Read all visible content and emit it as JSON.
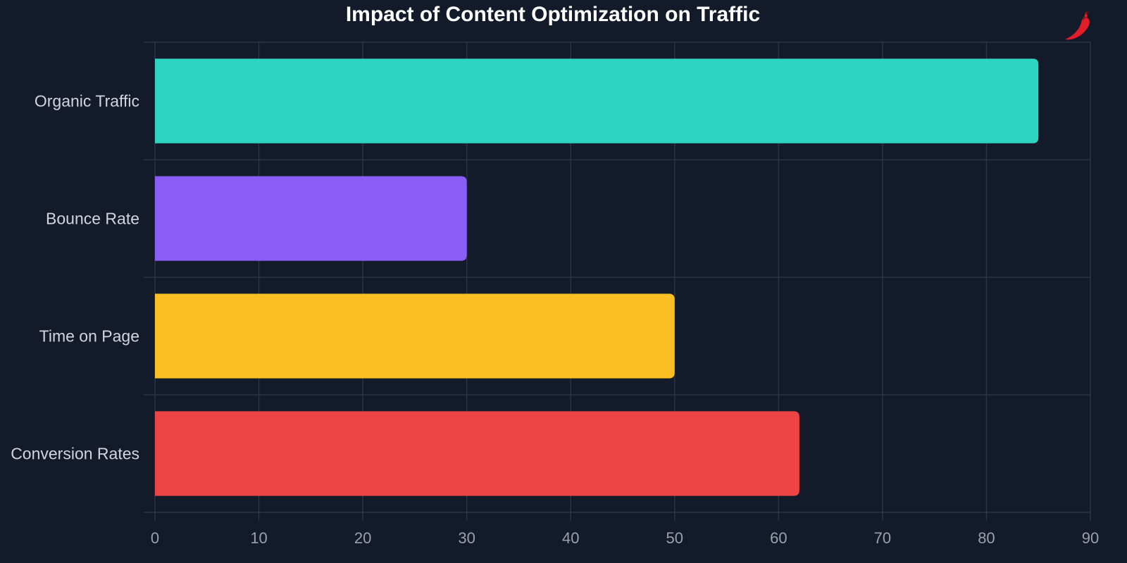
{
  "chart_data": {
    "type": "bar",
    "orientation": "horizontal",
    "title": "Impact of Content Optimization on Traffic",
    "xlabel": "",
    "ylabel": "",
    "categories": [
      "Organic Traffic",
      "Bounce Rate",
      "Time on Page",
      "Conversion Rates"
    ],
    "values": [
      85,
      30,
      50,
      62
    ],
    "colors": [
      "#2dd4bf",
      "#8b5cf6",
      "#fbbf24",
      "#ef4444"
    ],
    "xlim": [
      0,
      90
    ],
    "xticks": [
      0,
      10,
      20,
      30,
      40,
      50,
      60,
      70,
      80,
      90
    ],
    "grid": true,
    "legend": "none"
  },
  "logo": {
    "icon": "chili-pepper-icon",
    "color": "#e11d2a"
  }
}
